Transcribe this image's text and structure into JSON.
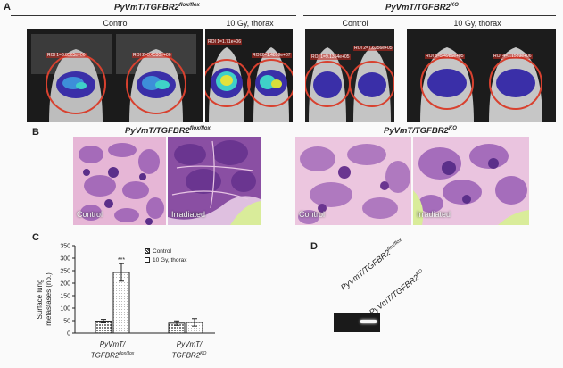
{
  "panels": {
    "a": "A",
    "b": "B",
    "c": "C",
    "d": "D"
  },
  "panel_a": {
    "left_group": {
      "title_main": "PyVmT/TGFBR2",
      "title_sup": "flox/flox"
    },
    "right_group": {
      "title_main": "PyVmT/TGFBR2",
      "title_sup": "KO"
    },
    "conditions": {
      "control": "Control",
      "irradiated": "10 Gy, thorax"
    },
    "roi_labels": [
      "ROI 1=6.8565e+06",
      "ROI 2=5.4590e+06",
      "ROI 1=1.71e+06",
      "ROI 2=1.4899e+07",
      "ROI 1=9.1354e+05",
      "ROI 2=7.6256e+05",
      "ROI 3=5.4986e+05",
      "ROI 4=1.1589e+06"
    ]
  },
  "panel_b": {
    "left_group": {
      "title_main": "PyVmT/TGFBR2",
      "title_sup": "flox/flox"
    },
    "right_group": {
      "title_main": "PyVmT/TGFBR2",
      "title_sup": "KO"
    },
    "tiles": [
      {
        "label": "Control"
      },
      {
        "label": "Irradiated"
      },
      {
        "label": "Control"
      },
      {
        "label": "Irradiated"
      }
    ]
  },
  "panel_c": {
    "ylabel_line1": "Surface lung",
    "ylabel_line2": "metastases (no.)",
    "significance": "***",
    "legend": [
      {
        "label": "Control",
        "pattern": "hatched"
      },
      {
        "label": "10 Gy, thorax",
        "pattern": "dotted"
      }
    ],
    "group_labels": [
      {
        "line1": "PyVmT/",
        "line2_main": "TGFBR2",
        "line2_sup": "flox/flox"
      },
      {
        "line1": "PyVmT/",
        "line2_main": "TGFBR2",
        "line2_sup": "KO"
      }
    ]
  },
  "panel_d": {
    "lane_labels": [
      {
        "main": "PyVmT/TGFBR2",
        "sup": "flox/flox"
      },
      {
        "main": "PyVmT/TGFBR2",
        "sup": "KO"
      }
    ]
  },
  "chart_data": {
    "type": "bar",
    "categories": [
      "PyVmT/TGFBR2flox/flox",
      "PyVmT/TGFBR2KO"
    ],
    "series": [
      {
        "name": "Control",
        "values": [
          48,
          40
        ],
        "errors": [
          7,
          9
        ]
      },
      {
        "name": "10 Gy, thorax",
        "values": [
          243,
          43
        ],
        "errors": [
          35,
          15
        ]
      }
    ],
    "title": "",
    "xlabel": "",
    "ylabel": "Surface lung metastases (no.)",
    "ylim": [
      0,
      350
    ],
    "yticks": [
      0,
      50,
      100,
      150,
      200,
      250,
      300,
      350
    ],
    "annotations": [
      "***"
    ],
    "legend_position": "top-right",
    "grid": false
  },
  "colors": {
    "roi_circle": "#d8412f",
    "tissue_purple": "#8a4fa3",
    "tissue_pink": "#e8b0d8",
    "bar_stroke": "#222222",
    "gel_band": "#ffffff"
  }
}
